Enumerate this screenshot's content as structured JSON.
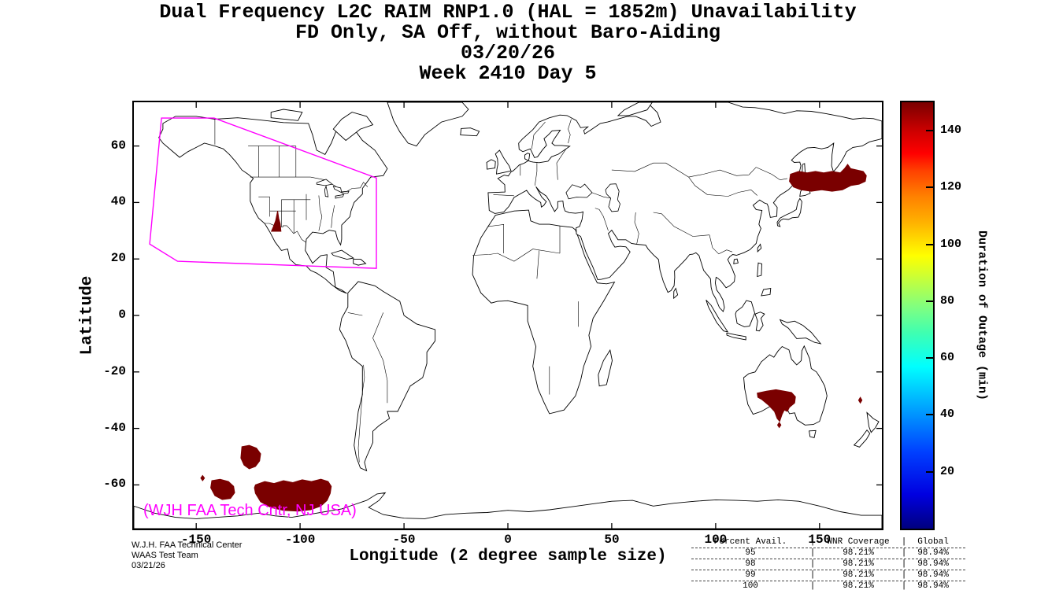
{
  "title": {
    "line1": "Dual Frequency L2C RAIM RNP1.0 (HAL = 1852m) Unavailability",
    "line2": "FD Only, SA Off, without Baro-Aiding",
    "line3": "03/20/26",
    "line4": "Week 2410 Day 5"
  },
  "axes": {
    "xlabel": "Longitude (2 degree sample size)",
    "ylabel": "Latitude",
    "x_ticks": [
      -150,
      -100,
      -50,
      0,
      50,
      100,
      150
    ],
    "y_ticks": [
      60,
      40,
      20,
      0,
      -20,
      -40,
      -60
    ],
    "xlim": [
      -180,
      180
    ],
    "ylim": [
      -75.5,
      75.5
    ]
  },
  "colorbar": {
    "label": "Duration of Outage (min)",
    "ticks": [
      20,
      40,
      60,
      80,
      100,
      120,
      140
    ],
    "range": [
      0,
      150
    ],
    "colormap": "jet"
  },
  "map_note": "(WJH FAA Tech Cntr, NJ USA)",
  "credits": {
    "line1": "W.J.H. FAA Technical Center",
    "line2": "WAAS Test Team",
    "line3": "03/21/26"
  },
  "availability_table": {
    "header": [
      "Percent Avail.",
      "WNR Coverage",
      "Global"
    ],
    "rows": [
      [
        "95",
        "98.21%",
        "98.94%"
      ],
      [
        "98",
        "98.21%",
        "98.94%"
      ],
      [
        "99",
        "98.21%",
        "98.94%"
      ],
      [
        "100",
        "98.21%",
        "98.94%"
      ]
    ]
  },
  "chart_data": {
    "type": "heatmap",
    "title": "Dual Frequency L2C RAIM RNP1.0 (HAL = 1852m) Unavailability",
    "subtitle": "FD Only, SA Off, without Baro-Aiding, 03/20/26, Week 2410 Day 5",
    "xlabel": "Longitude (2 degree sample size)",
    "ylabel": "Latitude",
    "xlim": [
      -180,
      180
    ],
    "ylim": [
      -75.5,
      75.5
    ],
    "colorbar_label": "Duration of Outage (min)",
    "colorbar_range": [
      0,
      150
    ],
    "colorbar_ticks": [
      20,
      40,
      60,
      80,
      100,
      120,
      140
    ],
    "colormap": "jet",
    "outage_color": "#7a0000",
    "boundary_color": "#ff00ff",
    "outage_value_note": "dark red regions approx 140-150 min outage",
    "waas_boundary": [
      [
        -166.7,
        69.9
      ],
      [
        -141.4,
        69.9
      ],
      [
        -63.3,
        48.7
      ],
      [
        -63.3,
        16.7
      ],
      [
        -159,
        19.2
      ],
      [
        -172.4,
        25.3
      ]
    ],
    "outage_regions": {
      "sea_of_japan": [
        [
          136,
          50
        ],
        [
          140,
          51
        ],
        [
          144,
          50.5
        ],
        [
          148,
          51
        ],
        [
          152,
          50.5
        ],
        [
          156,
          51
        ],
        [
          160,
          50.5
        ],
        [
          162,
          52
        ],
        [
          163.5,
          53.5
        ],
        [
          165,
          52
        ],
        [
          168,
          51.5
        ],
        [
          171,
          51
        ],
        [
          172.5,
          49.5
        ],
        [
          172,
          47.5
        ],
        [
          169,
          46.5
        ],
        [
          165,
          46
        ],
        [
          161,
          44.5
        ],
        [
          156,
          44
        ],
        [
          151,
          44.5
        ],
        [
          146,
          44
        ],
        [
          141,
          44.5
        ],
        [
          137.5,
          45.5
        ],
        [
          135.5,
          47.5
        ]
      ],
      "us_southwest": [
        [
          -113.8,
          29.8
        ],
        [
          -109.2,
          29.8
        ],
        [
          -109.6,
          32.5
        ],
        [
          -110.3,
          34.5
        ],
        [
          -110.8,
          37
        ],
        [
          -111.8,
          33.5
        ],
        [
          -112.8,
          31.5
        ]
      ],
      "south_australia": [
        [
          120,
          -27.5
        ],
        [
          124.5,
          -26.8
        ],
        [
          129,
          -26.3
        ],
        [
          133,
          -26.8
        ],
        [
          136.5,
          -27.3
        ],
        [
          138.4,
          -28.8
        ],
        [
          138,
          -31
        ],
        [
          135.5,
          -32.5
        ],
        [
          134.5,
          -34
        ],
        [
          133,
          -33.5
        ],
        [
          132,
          -35
        ],
        [
          130.8,
          -37.5
        ],
        [
          129.6,
          -36.5
        ],
        [
          128.3,
          -34
        ],
        [
          125.5,
          -31.8
        ],
        [
          122.3,
          -29.8
        ],
        [
          120.3,
          -29
        ]
      ],
      "south_australia_diamond": [
        [
          129.8,
          -38.8
        ],
        [
          130.6,
          -37.9
        ],
        [
          131.4,
          -38.8
        ],
        [
          130.6,
          -39.7
        ]
      ],
      "tasman_diamond": [
        [
          168.8,
          -30
        ],
        [
          169.6,
          -29
        ],
        [
          170.4,
          -30
        ],
        [
          169.6,
          -31
        ]
      ],
      "south_pacific_large": [
        [
          -121.5,
          -60
        ],
        [
          -117,
          -58.8
        ],
        [
          -112.5,
          -59.5
        ],
        [
          -108,
          -58.5
        ],
        [
          -103.5,
          -59.2
        ],
        [
          -99,
          -58.2
        ],
        [
          -94.5,
          -58.8
        ],
        [
          -90,
          -58
        ],
        [
          -86.5,
          -58.8
        ],
        [
          -85,
          -60.5
        ],
        [
          -85.5,
          -63
        ],
        [
          -87,
          -65.5
        ],
        [
          -90,
          -67.5
        ],
        [
          -95,
          -68.8
        ],
        [
          -101,
          -69.3
        ],
        [
          -108,
          -69
        ],
        [
          -114,
          -68
        ],
        [
          -119,
          -66
        ],
        [
          -121.5,
          -63
        ],
        [
          -122,
          -61
        ]
      ],
      "south_pacific_mid": [
        [
          -128,
          -46.5
        ],
        [
          -124.5,
          -46
        ],
        [
          -121,
          -47
        ],
        [
          -119,
          -49
        ],
        [
          -119.5,
          -51.5
        ],
        [
          -121.5,
          -53.5
        ],
        [
          -124.5,
          -54.3
        ],
        [
          -127,
          -53
        ],
        [
          -128.5,
          -50.5
        ]
      ],
      "south_pacific_small": [
        [
          -142.5,
          -58.5
        ],
        [
          -138.5,
          -58
        ],
        [
          -134.5,
          -58.8
        ],
        [
          -132,
          -60.5
        ],
        [
          -131.5,
          -62.8
        ],
        [
          -133.5,
          -64.8
        ],
        [
          -137.5,
          -65.2
        ],
        [
          -141,
          -63.8
        ],
        [
          -143,
          -61
        ]
      ],
      "south_pacific_diamond": [
        [
          -147.8,
          -57.6
        ],
        [
          -146.9,
          -56.7
        ],
        [
          -146,
          -57.6
        ],
        [
          -146.9,
          -58.5
        ]
      ]
    }
  }
}
